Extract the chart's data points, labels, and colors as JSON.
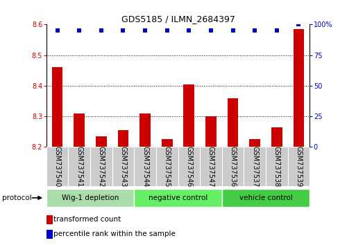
{
  "title": "GDS5185 / ILMN_2684397",
  "samples": [
    "GSM737540",
    "GSM737541",
    "GSM737542",
    "GSM737543",
    "GSM737544",
    "GSM737545",
    "GSM737546",
    "GSM737547",
    "GSM737536",
    "GSM737537",
    "GSM737538",
    "GSM737539"
  ],
  "bar_values": [
    8.46,
    8.31,
    8.235,
    8.255,
    8.31,
    8.225,
    8.405,
    8.3,
    8.36,
    8.225,
    8.265,
    8.585
  ],
  "dot_values": [
    95,
    95,
    95,
    95,
    95,
    95,
    95,
    95,
    95,
    95,
    95,
    100
  ],
  "ylim": [
    8.2,
    8.6
  ],
  "yticks_left": [
    8.2,
    8.3,
    8.4,
    8.5,
    8.6
  ],
  "yticks_right": [
    0,
    25,
    50,
    75,
    100
  ],
  "bar_color": "#cc0000",
  "dot_color": "#0000cc",
  "bar_bottom": 8.2,
  "groups": [
    {
      "label": "Wig-1 depletion",
      "start": 0,
      "end": 4,
      "color": "#aaddaa"
    },
    {
      "label": "negative control",
      "start": 4,
      "end": 8,
      "color": "#66ee66"
    },
    {
      "label": "vehicle control",
      "start": 8,
      "end": 12,
      "color": "#44cc44"
    }
  ],
  "legend_items": [
    {
      "color": "#cc0000",
      "label": "transformed count"
    },
    {
      "color": "#0000cc",
      "label": "percentile rank within the sample"
    }
  ],
  "protocol_label": "protocol",
  "sample_bg_color": "#cccccc",
  "title_fontsize": 9,
  "tick_fontsize": 7,
  "label_fontsize": 7,
  "group_fontsize": 7.5
}
